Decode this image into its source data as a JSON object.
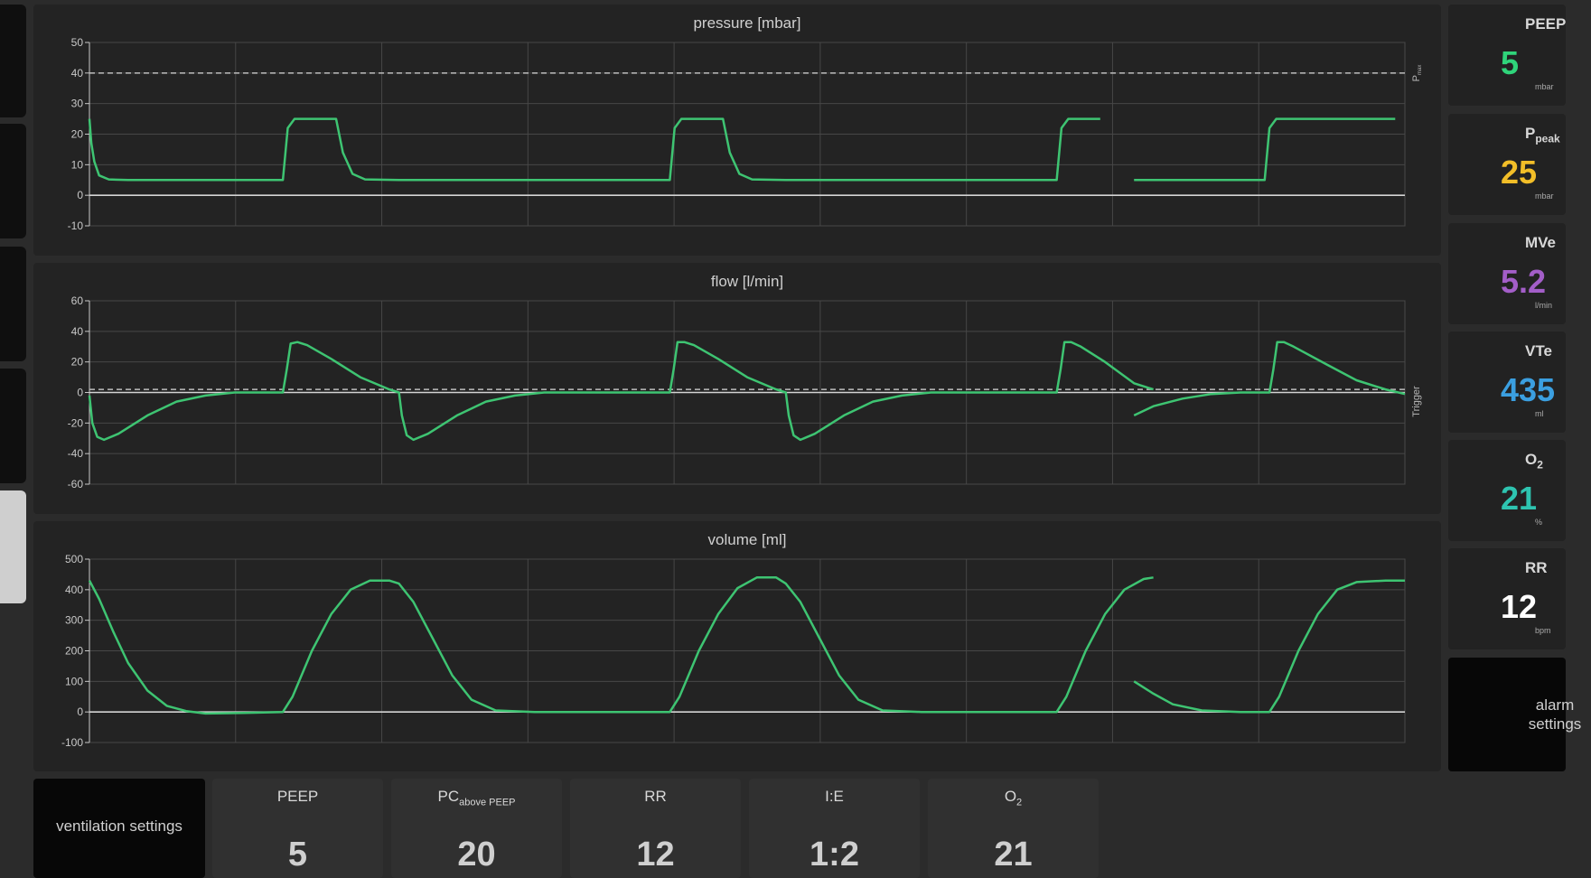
{
  "colors": {
    "waveform": "#3ec472",
    "peep": "#2fd47a",
    "ppeak": "#f2be28",
    "mve": "#a35ec8",
    "vte": "#3b9fe0",
    "o2": "#2ec4b0",
    "rr": "#ffffff"
  },
  "charts": [
    {
      "title": "pressure [mbar]",
      "ticks": [
        "50",
        "40",
        "30",
        "20",
        "10",
        "0",
        "-10"
      ],
      "side_label": "P",
      "side_label_sub": "max",
      "reference_line": 40
    },
    {
      "title": "flow [l/min]",
      "ticks": [
        "60",
        "40",
        "20",
        "0",
        "-20",
        "-40",
        "-60"
      ],
      "side_label": "Trigger",
      "side_label_sub": "",
      "reference_line": 2
    },
    {
      "title": "volume [ml]",
      "ticks": [
        "500",
        "400",
        "300",
        "200",
        "100",
        "0",
        "-100"
      ],
      "side_label": "",
      "side_label_sub": "",
      "reference_line": null
    }
  ],
  "chart_data": [
    {
      "type": "line",
      "title": "pressure [mbar]",
      "ylim": [
        -10,
        50
      ],
      "series": [
        {
          "values": [
            [
              0.0,
              25
            ],
            [
              0.02,
              17
            ],
            [
              0.05,
              11
            ],
            [
              0.1,
              6.5
            ],
            [
              0.2,
              5.2
            ],
            [
              0.4,
              5
            ],
            [
              1.8,
              5
            ],
            [
              2.0,
              5
            ],
            [
              2.05,
              22
            ],
            [
              2.12,
              25
            ],
            [
              2.4,
              25
            ],
            [
              2.55,
              25
            ],
            [
              2.62,
              14
            ],
            [
              2.72,
              7
            ],
            [
              2.85,
              5.2
            ],
            [
              3.2,
              5
            ],
            [
              5.8,
              5
            ],
            [
              6.0,
              5
            ],
            [
              6.05,
              22
            ],
            [
              6.12,
              25
            ],
            [
              6.45,
              25
            ],
            [
              6.55,
              25
            ],
            [
              6.62,
              14
            ],
            [
              6.72,
              7
            ],
            [
              6.85,
              5.2
            ],
            [
              7.2,
              5
            ],
            [
              9.9,
              5
            ],
            [
              10.0,
              5
            ],
            [
              10.05,
              22
            ],
            [
              10.12,
              25
            ],
            [
              10.45,
              25
            ]
          ]
        },
        {
          "values": [
            [
              10.8,
              5
            ],
            [
              12.0,
              5
            ],
            [
              12.15,
              5
            ],
            [
              12.2,
              22
            ],
            [
              12.27,
              25
            ],
            [
              13.5,
              25
            ]
          ]
        }
      ]
    },
    {
      "type": "line",
      "title": "flow [l/min]",
      "ylim": [
        -60,
        60
      ],
      "series": [
        {
          "values": [
            [
              0.0,
              -2
            ],
            [
              0.03,
              -20
            ],
            [
              0.08,
              -29
            ],
            [
              0.15,
              -31
            ],
            [
              0.3,
              -27
            ],
            [
              0.6,
              -15
            ],
            [
              0.9,
              -6
            ],
            [
              1.2,
              -2
            ],
            [
              1.5,
              0
            ],
            [
              2.0,
              0
            ],
            [
              2.04,
              15
            ],
            [
              2.08,
              32
            ],
            [
              2.15,
              33
            ],
            [
              2.25,
              31
            ],
            [
              2.5,
              22
            ],
            [
              2.8,
              10
            ],
            [
              3.1,
              2
            ],
            [
              3.2,
              0
            ],
            [
              3.23,
              -15
            ],
            [
              3.28,
              -28
            ],
            [
              3.35,
              -31
            ],
            [
              3.5,
              -27
            ],
            [
              3.8,
              -15
            ],
            [
              4.1,
              -6
            ],
            [
              4.4,
              -2
            ],
            [
              4.7,
              0
            ],
            [
              6.0,
              0
            ],
            [
              6.04,
              15
            ],
            [
              6.08,
              33
            ],
            [
              6.15,
              33
            ],
            [
              6.25,
              31
            ],
            [
              6.5,
              22
            ],
            [
              6.8,
              10
            ],
            [
              7.1,
              2
            ],
            [
              7.2,
              0
            ],
            [
              7.23,
              -15
            ],
            [
              7.28,
              -28
            ],
            [
              7.35,
              -31
            ],
            [
              7.5,
              -27
            ],
            [
              7.8,
              -15
            ],
            [
              8.1,
              -6
            ],
            [
              8.4,
              -2
            ],
            [
              8.7,
              0
            ],
            [
              10.0,
              0
            ],
            [
              10.04,
              15
            ],
            [
              10.08,
              33
            ],
            [
              10.15,
              33
            ],
            [
              10.25,
              30
            ],
            [
              10.5,
              20
            ],
            [
              10.8,
              6
            ],
            [
              11.0,
              2
            ]
          ]
        },
        {
          "values": [
            [
              10.8,
              -15
            ],
            [
              11.0,
              -9
            ],
            [
              11.3,
              -4
            ],
            [
              11.6,
              -1
            ],
            [
              11.9,
              0
            ],
            [
              12.2,
              0
            ],
            [
              12.24,
              15
            ],
            [
              12.28,
              33
            ],
            [
              12.35,
              33
            ],
            [
              12.45,
              30
            ],
            [
              12.8,
              18
            ],
            [
              13.1,
              8
            ],
            [
              13.4,
              2
            ],
            [
              13.6,
              -1
            ]
          ]
        }
      ]
    },
    {
      "type": "line",
      "title": "volume [ml]",
      "ylim": [
        -100,
        500
      ],
      "series": [
        {
          "values": [
            [
              0.0,
              430
            ],
            [
              0.1,
              370
            ],
            [
              0.25,
              260
            ],
            [
              0.4,
              160
            ],
            [
              0.6,
              70
            ],
            [
              0.8,
              20
            ],
            [
              1.0,
              3
            ],
            [
              1.2,
              -5
            ],
            [
              1.6,
              -3
            ],
            [
              2.0,
              0
            ],
            [
              2.1,
              50
            ],
            [
              2.3,
              200
            ],
            [
              2.5,
              320
            ],
            [
              2.7,
              400
            ],
            [
              2.9,
              430
            ],
            [
              3.1,
              430
            ],
            [
              3.2,
              420
            ],
            [
              3.35,
              360
            ],
            [
              3.55,
              240
            ],
            [
              3.75,
              120
            ],
            [
              3.95,
              40
            ],
            [
              4.2,
              5
            ],
            [
              4.6,
              0
            ],
            [
              6.0,
              0
            ],
            [
              6.1,
              50
            ],
            [
              6.3,
              200
            ],
            [
              6.5,
              320
            ],
            [
              6.7,
              405
            ],
            [
              6.9,
              440
            ],
            [
              7.1,
              440
            ],
            [
              7.2,
              420
            ],
            [
              7.35,
              360
            ],
            [
              7.55,
              240
            ],
            [
              7.75,
              120
            ],
            [
              7.95,
              40
            ],
            [
              8.2,
              5
            ],
            [
              8.6,
              0
            ],
            [
              10.0,
              0
            ],
            [
              10.1,
              50
            ],
            [
              10.3,
              200
            ],
            [
              10.5,
              320
            ],
            [
              10.7,
              400
            ],
            [
              10.9,
              435
            ],
            [
              11.0,
              440
            ]
          ]
        },
        {
          "values": [
            [
              10.8,
              100
            ],
            [
              11.0,
              60
            ],
            [
              11.2,
              25
            ],
            [
              11.5,
              5
            ],
            [
              11.9,
              0
            ],
            [
              12.2,
              0
            ],
            [
              12.3,
              50
            ],
            [
              12.5,
              200
            ],
            [
              12.7,
              320
            ],
            [
              12.9,
              400
            ],
            [
              13.1,
              425
            ],
            [
              13.4,
              430
            ],
            [
              13.6,
              430
            ]
          ]
        }
      ]
    }
  ],
  "measurements": [
    {
      "label": "PEEP",
      "label_sub": "",
      "value": "5",
      "unit": "mbar",
      "color_key": "peep"
    },
    {
      "label": "P",
      "label_sub": "peak",
      "value": "25",
      "unit": "mbar",
      "color_key": "ppeak"
    },
    {
      "label": "MVe",
      "label_sub": "",
      "value": "5.2",
      "unit": "l/min",
      "color_key": "mve"
    },
    {
      "label": "VTe",
      "label_sub": "",
      "value": "435",
      "unit": "ml",
      "color_key": "vte"
    },
    {
      "label": "O",
      "label_sub": "2",
      "value": "21",
      "unit": "%",
      "color_key": "o2"
    },
    {
      "label": "RR",
      "label_sub": "",
      "value": "12",
      "unit": "bpm",
      "color_key": "rr"
    }
  ],
  "alarm_button": "alarm settings",
  "ventilation_button": "ventilation settings",
  "settings": [
    {
      "label": "PEEP",
      "label_sub": "",
      "value": "5"
    },
    {
      "label": "PC",
      "label_sub": "above PEEP",
      "value": "20"
    },
    {
      "label": "RR",
      "label_sub": "",
      "value": "12"
    },
    {
      "label": "I:E",
      "label_sub": "",
      "value": "1:2"
    },
    {
      "label": "O",
      "label_sub": "2",
      "value": "21"
    }
  ]
}
